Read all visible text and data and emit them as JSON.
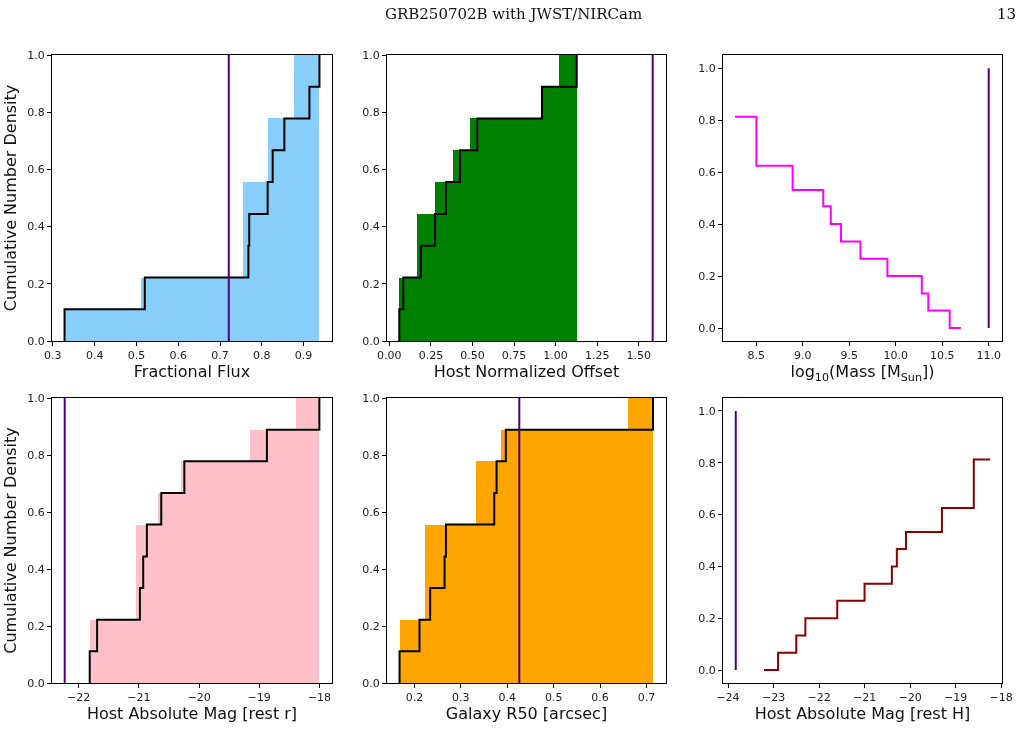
{
  "chart_data": [
    {
      "type": "step",
      "xlabel": "Fractional Flux",
      "ylabel": "Cumulative Number Density",
      "series": [
        {
          "type": "histogram",
          "color": "#87cefa",
          "bins": [
            0.328,
            0.389,
            0.45,
            0.511,
            0.572,
            0.633,
            0.694,
            0.755,
            0.816,
            0.877,
            0.938
          ],
          "values": [
            0.111,
            0.111,
            0.111,
            0.222,
            0.222,
            0.222,
            0.222,
            0.556,
            0.778,
            1.0
          ]
        },
        {
          "color": "#000000",
          "x": [
            0.328,
            0.328,
            0.52,
            0.768,
            0.77,
            0.814,
            0.826,
            0.854,
            0.914,
            0.938
          ],
          "values": [
            0,
            0.111,
            0.222,
            0.333,
            0.444,
            0.556,
            0.667,
            0.778,
            0.889,
            1.0
          ]
        }
      ],
      "ref_lines": [
        {
          "axis": "x",
          "value": 0.721,
          "color": "#4b0082"
        }
      ],
      "xlim": [
        0.298,
        0.968
      ],
      "ylim": [
        0,
        1
      ],
      "xticks": [
        {
          "value": 0.3,
          "label": "0.3"
        },
        {
          "value": 0.4,
          "label": "0.4"
        },
        {
          "value": 0.5,
          "label": "0.5"
        },
        {
          "value": 0.6,
          "label": "0.6"
        },
        {
          "value": 0.7,
          "label": "0.7"
        },
        {
          "value": 0.8,
          "label": "0.8"
        },
        {
          "value": 0.9,
          "label": "0.9"
        }
      ],
      "yticks": [
        {
          "value": 0,
          "label": "0.0"
        },
        {
          "value": 0.2,
          "label": "0.2"
        },
        {
          "value": 0.4,
          "label": "0.4"
        },
        {
          "value": 0.6,
          "label": "0.6"
        },
        {
          "value": 0.8,
          "label": "0.8"
        },
        {
          "value": 1,
          "label": "1.0"
        }
      ]
    },
    {
      "type": "step",
      "title": "GRB250702B with JWST/NIRCam",
      "xlabel": "Host Normalized Offset",
      "series": [
        {
          "type": "histogram",
          "color": "#008000",
          "bins": [
            0.06,
            0.167,
            0.274,
            0.381,
            0.488,
            0.595,
            0.702,
            0.809,
            0.916,
            1.023,
            1.13
          ],
          "values": [
            0.222,
            0.444,
            0.556,
            0.667,
            0.778,
            0.778,
            0.778,
            0.778,
            0.889,
            1.0
          ]
        },
        {
          "color": "#000000",
          "x": [
            0.06,
            0.06,
            0.084,
            0.19,
            0.275,
            0.341,
            0.425,
            0.529,
            0.918,
            1.127
          ],
          "values": [
            0,
            0.111,
            0.222,
            0.333,
            0.444,
            0.556,
            0.667,
            0.778,
            0.889,
            1.0
          ]
        }
      ],
      "ref_lines": [
        {
          "axis": "x",
          "value": 1.584,
          "color": "#4b0082"
        }
      ],
      "xlim": [
        -0.014,
        1.664
      ],
      "ylim": [
        0,
        1
      ],
      "xticks": [
        {
          "value": 0,
          "label": "0.00"
        },
        {
          "value": 0.25,
          "label": "0.25"
        },
        {
          "value": 0.5,
          "label": "0.50"
        },
        {
          "value": 0.75,
          "label": "0.75"
        },
        {
          "value": 1,
          "label": "1.00"
        },
        {
          "value": 1.25,
          "label": "1.25"
        },
        {
          "value": 1.5,
          "label": "1.50"
        }
      ],
      "yticks": [
        {
          "value": 0,
          "label": "0.0"
        },
        {
          "value": 0.2,
          "label": "0.2"
        },
        {
          "value": 0.4,
          "label": "0.4"
        },
        {
          "value": 0.6,
          "label": "0.6"
        },
        {
          "value": 0.8,
          "label": "0.8"
        },
        {
          "value": 1,
          "label": "1.0"
        }
      ]
    },
    {
      "type": "step",
      "xlabel": "log$_{10}$(Mass [M$_{Sun}$])",
      "annotations": [
        "13"
      ],
      "series": [
        {
          "color": "#ff00ff",
          "x": [
            8.27,
            8.5,
            8.89,
            9.22,
            9.3,
            9.41,
            9.62,
            9.91,
            10.28,
            10.35,
            10.58,
            10.7
          ],
          "values": [
            0.813,
            0.625,
            0.531,
            0.469,
            0.4,
            0.333,
            0.267,
            0.2,
            0.133,
            0.067,
            0,
            0
          ]
        },
        {
          "type": "line",
          "color": "#4b0082",
          "x": [
            11.0,
            11.0
          ],
          "values": [
            0,
            1
          ]
        }
      ],
      "xlim": [
        8.141,
        11.143
      ],
      "ylim": [
        -0.05,
        1.051
      ],
      "xticks": [
        {
          "value": 8.5,
          "label": "8.5"
        },
        {
          "value": 9,
          "label": "9.0"
        },
        {
          "value": 9.5,
          "label": "9.5"
        },
        {
          "value": 10,
          "label": "10.0"
        },
        {
          "value": 10.5,
          "label": "10.5"
        },
        {
          "value": 11,
          "label": "11.0"
        }
      ],
      "yticks": [
        {
          "value": 0,
          "label": "0.0"
        },
        {
          "value": 0.2,
          "label": "0.2"
        },
        {
          "value": 0.4,
          "label": "0.4"
        },
        {
          "value": 0.6,
          "label": "0.6"
        },
        {
          "value": 0.8,
          "label": "0.8"
        },
        {
          "value": 1,
          "label": "1.0"
        }
      ]
    },
    {
      "type": "step",
      "xlabel": "Host Absolute Mag [rest r]",
      "ylabel": "Cumulative Number Density",
      "series": [
        {
          "type": "histogram",
          "color": "#ffc0cb",
          "bins": [
            -21.82,
            -21.438,
            -21.056,
            -20.674,
            -20.292,
            -19.91,
            -19.528,
            -19.146,
            -18.764,
            -18.382,
            -18.0
          ],
          "values": [
            0.222,
            0.222,
            0.556,
            0.667,
            0.778,
            0.778,
            0.778,
            0.889,
            0.889,
            1.0
          ]
        },
        {
          "color": "#000000",
          "x": [
            -21.817,
            -21.817,
            -21.694,
            -20.983,
            -20.928,
            -20.867,
            -20.628,
            -20.244,
            -18.872,
            -18.0
          ],
          "values": [
            0,
            0.111,
            0.222,
            0.333,
            0.444,
            0.556,
            0.667,
            0.778,
            0.889,
            1.0
          ]
        }
      ],
      "ref_lines": [
        {
          "axis": "x",
          "value": -22.233,
          "color": "#4b0082"
        }
      ],
      "xlim": [
        -22.444,
        -17.79
      ],
      "ylim": [
        0,
        1
      ],
      "xticks": [
        {
          "value": -22,
          "label": "−22"
        },
        {
          "value": -21,
          "label": "−21"
        },
        {
          "value": -20,
          "label": "−20"
        },
        {
          "value": -19,
          "label": "−19"
        },
        {
          "value": -18,
          "label": "−18"
        }
      ],
      "yticks": [
        {
          "value": 0,
          "label": "0.0"
        },
        {
          "value": 0.2,
          "label": "0.2"
        },
        {
          "value": 0.4,
          "label": "0.4"
        },
        {
          "value": 0.6,
          "label": "0.6"
        },
        {
          "value": 0.8,
          "label": "0.8"
        },
        {
          "value": 1,
          "label": "1.0"
        }
      ]
    },
    {
      "type": "step",
      "xlabel": "Galaxy R50 [arcsec]",
      "series": [
        {
          "type": "histogram",
          "color": "#ffa500",
          "bins": [
            0.168,
            0.222,
            0.277,
            0.332,
            0.387,
            0.441,
            0.496,
            0.551,
            0.605,
            0.66,
            0.715
          ],
          "values": [
            0.222,
            0.556,
            0.556,
            0.778,
            0.889,
            0.889,
            0.889,
            0.889,
            0.889,
            1.0
          ]
        },
        {
          "color": "#000000",
          "x": [
            0.168,
            0.168,
            0.211,
            0.234,
            0.265,
            0.268,
            0.372,
            0.377,
            0.397,
            0.714
          ],
          "values": [
            0,
            0.111,
            0.222,
            0.333,
            0.444,
            0.556,
            0.667,
            0.778,
            0.889,
            1.0
          ]
        }
      ],
      "ref_lines": [
        {
          "axis": "x",
          "value": 0.426,
          "color": "#4b0082"
        }
      ],
      "xlim": [
        0.141,
        0.742
      ],
      "ylim": [
        0,
        1
      ],
      "xticks": [
        {
          "value": 0.2,
          "label": "0.2"
        },
        {
          "value": 0.3,
          "label": "0.3"
        },
        {
          "value": 0.4,
          "label": "0.4"
        },
        {
          "value": 0.5,
          "label": "0.5"
        },
        {
          "value": 0.6,
          "label": "0.6"
        },
        {
          "value": 0.7,
          "label": "0.7"
        }
      ],
      "yticks": [
        {
          "value": 0,
          "label": "0.0"
        },
        {
          "value": 0.2,
          "label": "0.2"
        },
        {
          "value": 0.4,
          "label": "0.4"
        },
        {
          "value": 0.6,
          "label": "0.6"
        },
        {
          "value": 0.8,
          "label": "0.8"
        },
        {
          "value": 1,
          "label": "1.0"
        }
      ]
    },
    {
      "type": "step",
      "xlabel": "Host Absolute Mag [rest H]",
      "series": [
        {
          "color": "#8b0000",
          "x": [
            -23.21,
            -22.9,
            -22.5,
            -22.3,
            -21.6,
            -21.0,
            -20.4,
            -20.29,
            -20.09,
            -19.3,
            -18.6,
            -18.24
          ],
          "values": [
            0,
            0.067,
            0.133,
            0.2,
            0.267,
            0.333,
            0.4,
            0.467,
            0.533,
            0.625,
            0.813,
            0.813
          ]
        },
        {
          "type": "line",
          "color": "#4b0082",
          "x": [
            -23.83,
            -23.83
          ],
          "values": [
            0,
            1
          ]
        }
      ],
      "xlim": [
        -24.11,
        -17.98
      ],
      "ylim": [
        -0.05,
        1.05
      ],
      "xticks": [
        {
          "value": -24,
          "label": "−24"
        },
        {
          "value": -23,
          "label": "−23"
        },
        {
          "value": -22,
          "label": "−22"
        },
        {
          "value": -21,
          "label": "−21"
        },
        {
          "value": -20,
          "label": "−20"
        },
        {
          "value": -19,
          "label": "−19"
        },
        {
          "value": -18,
          "label": "−18"
        }
      ],
      "yticks": [
        {
          "value": 0,
          "label": "0.0"
        },
        {
          "value": 0.2,
          "label": "0.2"
        },
        {
          "value": 0.4,
          "label": "0.4"
        },
        {
          "value": 0.6,
          "label": "0.6"
        },
        {
          "value": 0.8,
          "label": "0.8"
        },
        {
          "value": 1,
          "label": "1.0"
        }
      ]
    }
  ]
}
